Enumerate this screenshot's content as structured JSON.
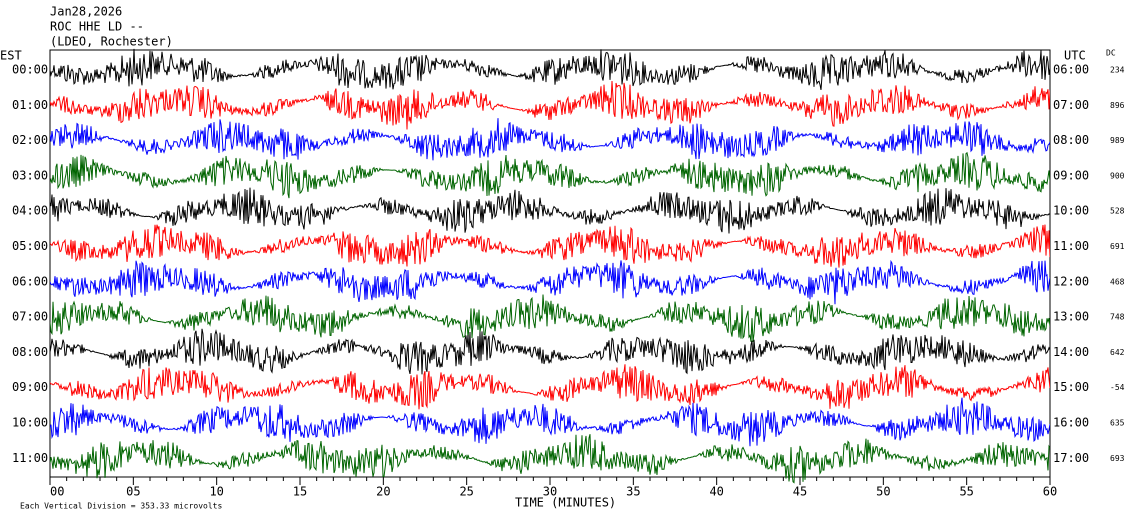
{
  "header": {
    "lines": [
      "Jan28,2026",
      "ROC HHE LD --",
      "(LDEO, Rochester)"
    ]
  },
  "left_axis": {
    "title": "EST",
    "labels": [
      "00:00",
      "01:00",
      "02:00",
      "03:00",
      "04:00",
      "05:00",
      "06:00",
      "07:00",
      "08:00",
      "09:00",
      "10:00",
      "11:00"
    ]
  },
  "right_axis": {
    "title": "UTC",
    "labels": [
      "06:00",
      "07:00",
      "08:00",
      "09:00",
      "10:00",
      "11:00",
      "12:00",
      "13:00",
      "14:00",
      "15:00",
      "16:00",
      "17:00"
    ]
  },
  "dc": {
    "title": "DC",
    "values": [
      "234",
      "896",
      "989",
      "900",
      "528",
      "691",
      "468",
      "748",
      "642",
      "-54",
      "635",
      "693"
    ]
  },
  "x_axis": {
    "title": "TIME (MINUTES)",
    "labels": [
      "00",
      "05",
      "10",
      "15",
      "20",
      "25",
      "30",
      "35",
      "40",
      "45",
      "50",
      "55",
      "60"
    ]
  },
  "footer": "Each Vertical Division =  353.33 microvolts",
  "trace_colors": [
    "#000000",
    "#ff0000",
    "#0000ff",
    "#006400"
  ]
}
